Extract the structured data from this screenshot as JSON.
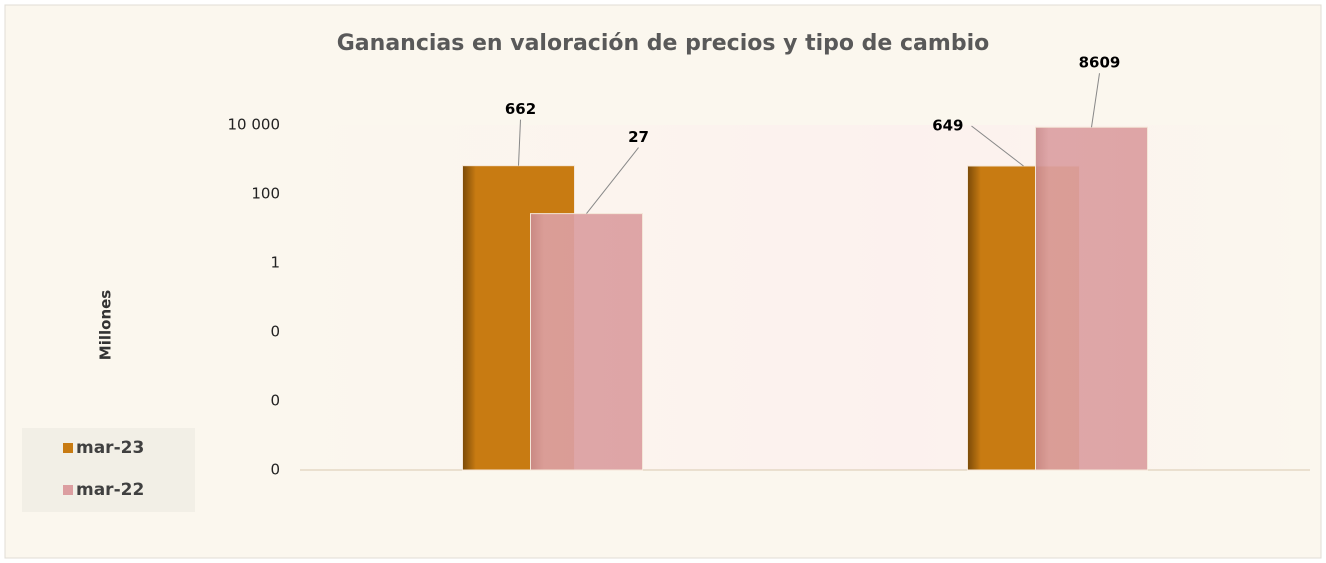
{
  "chart_data": {
    "type": "bar",
    "title": "Ganancias en valoración de precios y  tipo de cambio",
    "y_label": "Millones",
    "categories": [
      null,
      null
    ],
    "series": [
      {
        "name": "mar-23",
        "color": "#c87b12",
        "values": [
          662,
          649
        ]
      },
      {
        "name": "mar-22",
        "color": "#dc9ea0",
        "values": [
          27,
          8609
        ]
      }
    ],
    "log_scale": true,
    "ylim": [
      1e-06,
      10000
    ],
    "yticks": [
      {
        "value": 10000,
        "label": "10 000"
      },
      100,
      1,
      {
        "value": 0.01,
        "label": "0"
      },
      {
        "value": 0.0001,
        "label": "0"
      },
      {
        "value": 1e-06,
        "label": "0"
      }
    ],
    "grid": false,
    "legend": "left"
  }
}
